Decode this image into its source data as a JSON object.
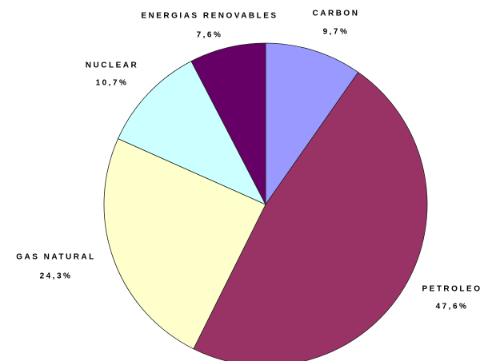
{
  "chart_data": {
    "type": "pie",
    "categories": [
      "CARBON",
      "PETROLEO",
      "GAS NATURAL",
      "NUCLEAR",
      "ENERGIAS RENOVABLES"
    ],
    "values": [
      9.7,
      47.6,
      24.3,
      10.7,
      7.6
    ],
    "value_labels": [
      "9,7%",
      "47,6%",
      "24,3%",
      "10,7%",
      "7,6%"
    ],
    "colors": [
      "#9999ff",
      "#993366",
      "#ffffcc",
      "#ccffff",
      "#660066"
    ]
  }
}
